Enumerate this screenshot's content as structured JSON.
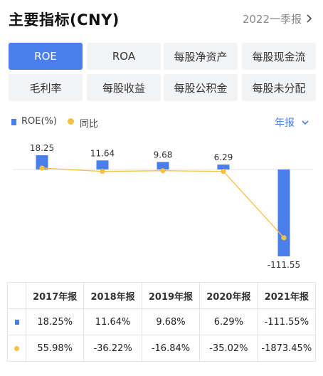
{
  "header": {
    "title": "主要指标(CNY)",
    "period": "2022一季报"
  },
  "tabs": [
    {
      "label": "ROE",
      "active": true
    },
    {
      "label": "ROA",
      "active": false
    },
    {
      "label": "每股净资产",
      "active": false
    },
    {
      "label": "每股现金流",
      "active": false
    },
    {
      "label": "毛利率",
      "active": false
    },
    {
      "label": "每股收益",
      "active": false
    },
    {
      "label": "每股公积金",
      "active": false
    },
    {
      "label": "每股未分配",
      "active": false
    }
  ],
  "legend": {
    "roe": "ROE(%)",
    "yoy": "同比",
    "report_type": "年报"
  },
  "colors": {
    "accent": "#4a7eeb",
    "line": "#f5c044",
    "positive": "#e0323d",
    "negative": "#1aa35a"
  },
  "chart_data": {
    "type": "bar",
    "categories": [
      "2017年报",
      "2018年报",
      "2019年报",
      "2020年报",
      "2021年报"
    ],
    "series": [
      {
        "name": "ROE(%)",
        "type": "bar",
        "values": [
          18.25,
          11.64,
          9.68,
          6.29,
          -111.55
        ],
        "labels": [
          "18.25",
          "11.64",
          "9.68",
          "6.29",
          "-111.55"
        ]
      },
      {
        "name": "同比",
        "type": "line",
        "values": [
          55.98,
          -36.22,
          -16.84,
          -35.02,
          -1873.45
        ]
      }
    ]
  },
  "table": {
    "headers": [
      "2017年报",
      "2018年报",
      "2019年报",
      "2020年报",
      "2021年报"
    ],
    "roe_row": [
      "18.25%",
      "11.64%",
      "9.68%",
      "6.29%",
      "-111.55%"
    ],
    "yoy_row": [
      "55.98%",
      "-36.22%",
      "-16.84%",
      "-35.02%",
      "-1873.45%"
    ]
  }
}
